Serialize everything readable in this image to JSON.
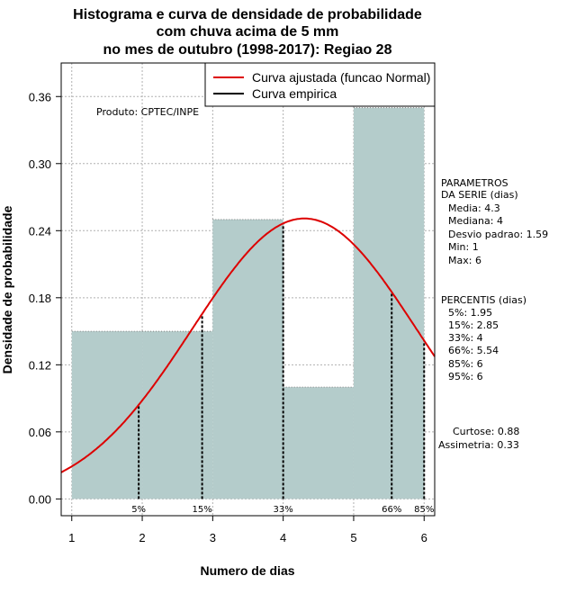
{
  "chart_data": {
    "type": "bar",
    "title_lines": [
      "Histograma e curva de densidade de probabilidade",
      "com chuva acima de 5 mm",
      "no mes de outubro (1998-2017): Regiao 28"
    ],
    "xlabel": "Numero de dias",
    "ylabel": "Densidade de probabilidade",
    "xlim": [
      0.85,
      6.15
    ],
    "ylim": [
      -0.015,
      0.39
    ],
    "x_ticks": [
      1,
      2,
      3,
      4,
      5,
      6
    ],
    "y_ticks": [
      0.0,
      0.06,
      0.12,
      0.18,
      0.24,
      0.3,
      0.36
    ],
    "y_tick_labels": [
      "0.00",
      "0.06",
      "0.12",
      "0.18",
      "0.24",
      "0.30",
      "0.36"
    ],
    "histogram": {
      "bins": [
        [
          1,
          2
        ],
        [
          2,
          3
        ],
        [
          3,
          4
        ],
        [
          4,
          5
        ],
        [
          5,
          6
        ]
      ],
      "values": [
        0.15,
        0.15,
        0.25,
        0.1,
        0.35
      ],
      "color": "#b4cccb"
    },
    "normal_curve": {
      "mean": 4.3,
      "sd": 1.59,
      "color": "#dd0000",
      "name": "Curva ajustada (funcao Normal)"
    },
    "empirical_curve_name": "Curva empirica",
    "legend_position": "top-right",
    "percentile_lines": [
      {
        "x": 1.95,
        "label": "5%"
      },
      {
        "x": 2.85,
        "label": "15%"
      },
      {
        "x": 4.0,
        "label": "33%"
      },
      {
        "x": 5.54,
        "label": "66%"
      },
      {
        "x": 6.0,
        "label": "85%"
      }
    ],
    "source_note": "Produto: CPTEC/INPE",
    "parameters": {
      "heading": [
        "PARAMETROS",
        "DA SERIE (dias)"
      ],
      "items": [
        "Media: 4.3",
        "Mediana: 4",
        "Desvio padrao: 1.59",
        "Min: 1",
        "Max: 6"
      ]
    },
    "percentiles": {
      "heading": "PERCENTIS (dias)",
      "items": [
        "5%: 1.95",
        "15%: 2.85",
        "33%: 4",
        "66%: 5.54",
        "85%: 6",
        "95%: 6"
      ]
    },
    "shape": [
      "Curtose: 0.88",
      "Assimetria: 0.33"
    ]
  }
}
